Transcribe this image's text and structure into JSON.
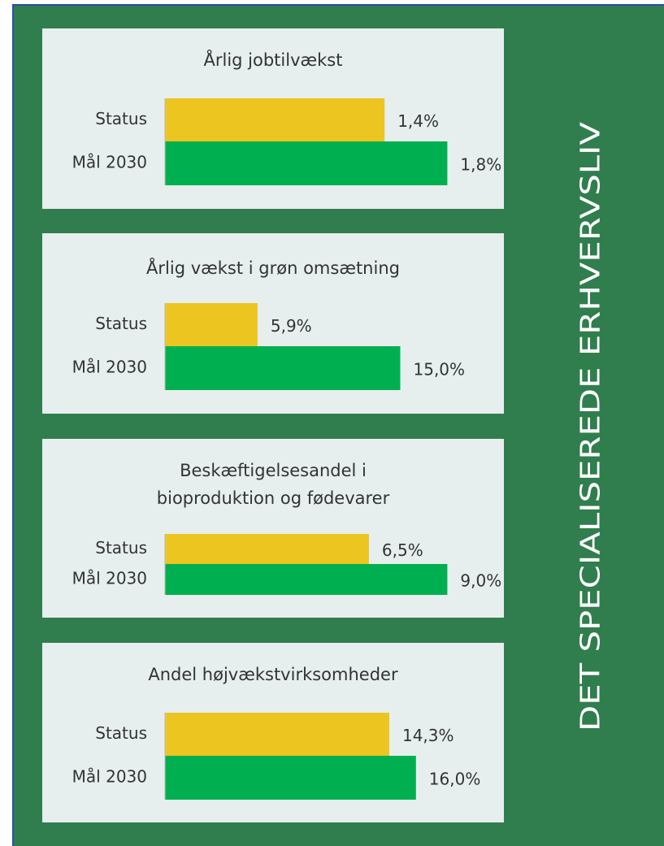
{
  "side_title": "DET SPECIALISEREDE ERHVERVSLIV",
  "chart_data": [
    {
      "type": "bar",
      "orientation": "horizontal",
      "title": "Årlig jobtilvækst",
      "categories": [
        "Status",
        "Mål 2030"
      ],
      "values": [
        1.4,
        1.8
      ],
      "value_labels": [
        "1,4%",
        "1,8%"
      ],
      "colors": [
        "#ecc521",
        "#00b050"
      ],
      "xlim": [
        0,
        2
      ]
    },
    {
      "type": "bar",
      "orientation": "horizontal",
      "title": "Årlig vækst i grøn omsætning",
      "categories": [
        "Status",
        "Mål 2030"
      ],
      "values": [
        5.9,
        15.0
      ],
      "value_labels": [
        "5,9%",
        "15,0%"
      ],
      "colors": [
        "#ecc521",
        "#00b050"
      ],
      "xlim": [
        0,
        20
      ]
    },
    {
      "type": "bar",
      "orientation": "horizontal",
      "title": "Beskæftigelsesandel i\nbioproduktion og fødevarer",
      "categories": [
        "Status",
        "Mål 2030"
      ],
      "values": [
        6.5,
        9.0
      ],
      "value_labels": [
        "6,5%",
        "9,0%"
      ],
      "colors": [
        "#ecc521",
        "#00b050"
      ],
      "xlim": [
        0,
        10
      ]
    },
    {
      "type": "bar",
      "orientation": "horizontal",
      "title": "Andel højvækstvirksomheder",
      "categories": [
        "Status",
        "Mål 2030"
      ],
      "values": [
        14.3,
        16.0
      ],
      "value_labels": [
        "14,3%",
        "16,0%"
      ],
      "colors": [
        "#ecc521",
        "#00b050"
      ],
      "xlim": [
        0,
        20
      ]
    }
  ]
}
